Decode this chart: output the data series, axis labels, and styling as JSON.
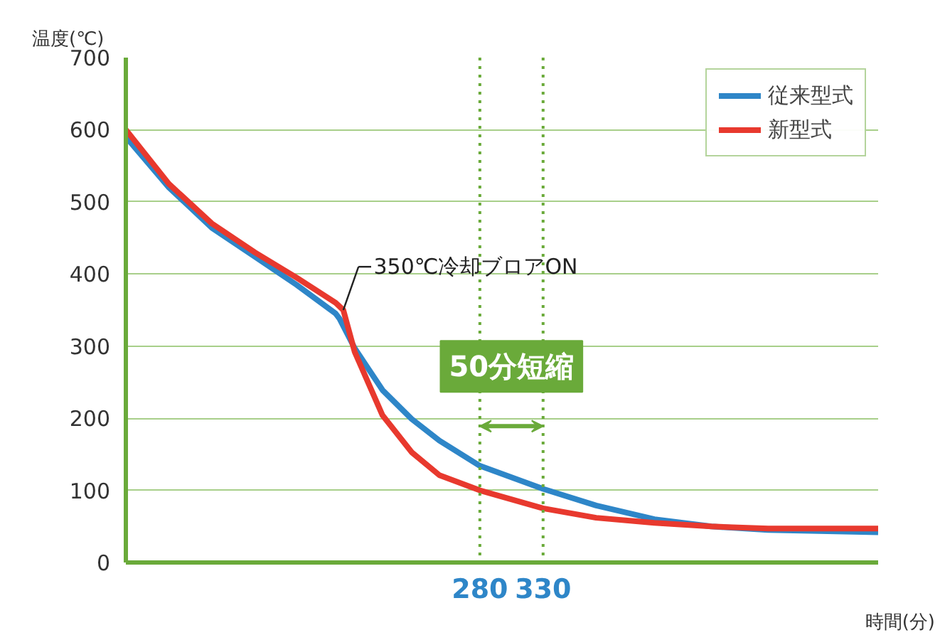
{
  "chart_data": {
    "type": "line",
    "xlabel": "時間(分)",
    "ylabel": "温度(℃)",
    "xlim": [
      0,
      595
    ],
    "ylim": [
      0,
      700
    ],
    "yticks": [
      0,
      100,
      200,
      300,
      400,
      500,
      600,
      700
    ],
    "xticks": [
      280,
      330
    ],
    "grid": "y",
    "legend": "top right",
    "line_style": "solid",
    "marker": "none",
    "series": [
      {
        "name": "従来型式",
        "color": "#2e86c8",
        "x": [
          0,
          34,
          68,
          102,
          135,
          166,
          169,
          181,
          203,
          226,
          248,
          280,
          330,
          372,
          418,
          463,
          508,
          595
        ],
        "values": [
          590,
          520,
          464,
          424,
          385,
          345,
          338,
          297,
          239,
          199,
          169,
          134,
          102,
          79,
          60,
          50,
          45,
          42
        ]
      },
      {
        "name": "新型式",
        "color": "#e8392e",
        "x": [
          0,
          34,
          68,
          102,
          135,
          166,
          172,
          181,
          203,
          226,
          248,
          280,
          330,
          372,
          418,
          463,
          508,
          595
        ],
        "values": [
          600,
          525,
          470,
          430,
          395,
          360,
          350,
          292,
          204,
          153,
          121,
          100,
          75,
          62,
          55,
          50,
          47,
          47
        ]
      }
    ],
    "ref_lines": [
      {
        "axis": "x",
        "value": 280,
        "color": "#6aaa3a",
        "line_style": "dotted"
      },
      {
        "axis": "x",
        "value": 330,
        "color": "#6aaa3a",
        "line_style": "dotted"
      }
    ],
    "annotations": [
      {
        "text": "350℃冷却ブロアON",
        "x": 172,
        "y": 350
      },
      "50分短縮"
    ]
  }
}
